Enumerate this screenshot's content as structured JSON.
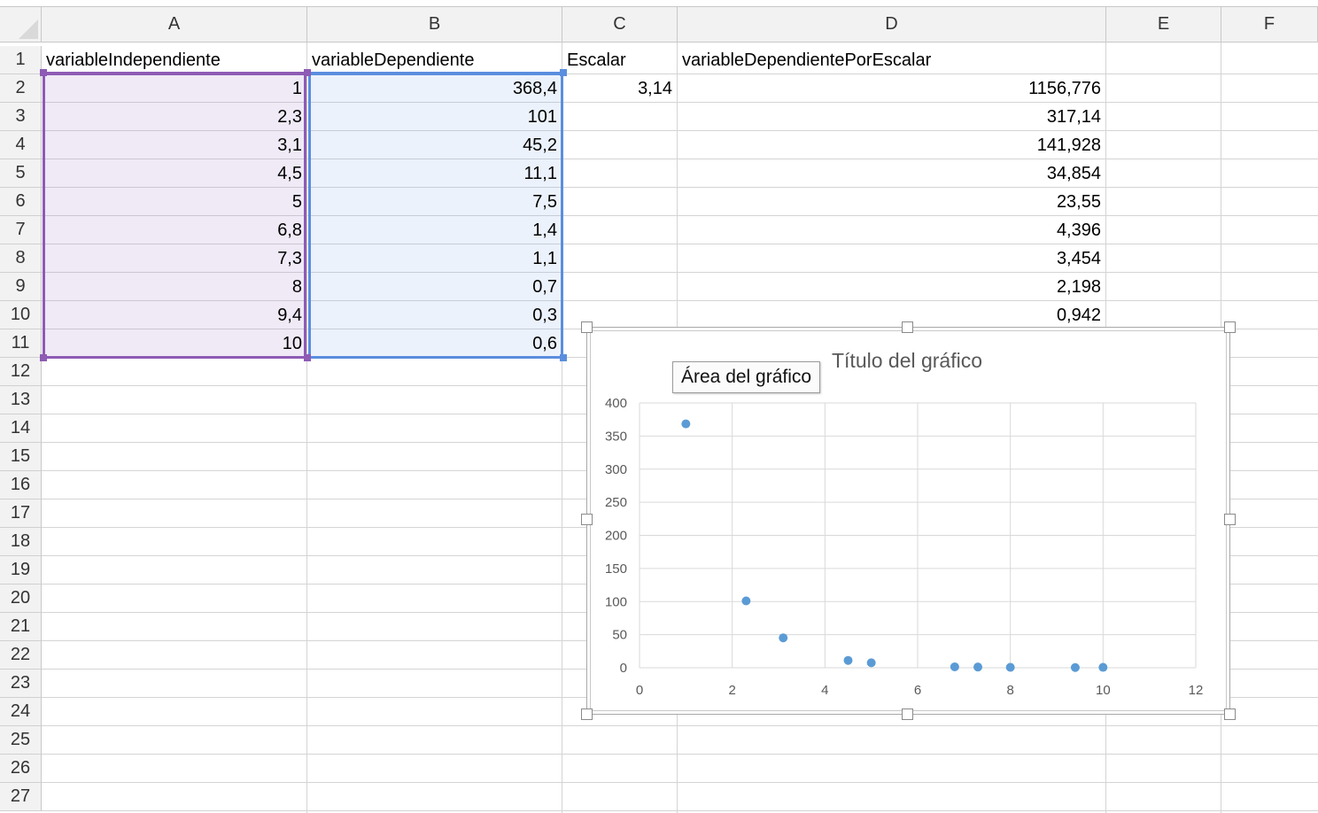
{
  "columns": [
    "A",
    "B",
    "C",
    "D",
    "E",
    "F"
  ],
  "rows": [
    "1",
    "2",
    "3",
    "4",
    "5",
    "6",
    "7",
    "8",
    "9",
    "10",
    "11",
    "12",
    "13",
    "14",
    "15",
    "16",
    "17",
    "18",
    "19",
    "20",
    "21",
    "22",
    "23",
    "24",
    "25",
    "26",
    "27"
  ],
  "headers": {
    "A": "variableIndependiente",
    "B": "variableDependiente",
    "C": "Escalar",
    "D": "variableDependientePorEscalar"
  },
  "colA": [
    "1",
    "2,3",
    "3,1",
    "4,5",
    "5",
    "6,8",
    "7,3",
    "8",
    "9,4",
    "10"
  ],
  "colB": [
    "368,4",
    "101",
    "45,2",
    "11,1",
    "7,5",
    "1,4",
    "1,1",
    "0,7",
    "0,3",
    "0,6"
  ],
  "colC": [
    "3,14"
  ],
  "colD": [
    "1156,776",
    "317,14",
    "141,928",
    "34,854",
    "23,55",
    "4,396",
    "3,454",
    "2,198",
    "0,942"
  ],
  "tooltip": "Área del gráfico",
  "colors": {
    "selectionA": "#8e5bb5",
    "selectionB": "#5b8ede",
    "marker": "#5b9bd5"
  },
  "chart_data": {
    "type": "scatter",
    "title": "Título del gráfico",
    "xlabel": "",
    "ylabel": "",
    "xlim": [
      0,
      12
    ],
    "ylim": [
      0,
      400
    ],
    "xticks": [
      "0",
      "2",
      "4",
      "6",
      "8",
      "10",
      "12"
    ],
    "yticks": [
      "0",
      "50",
      "100",
      "150",
      "200",
      "250",
      "300",
      "350",
      "400"
    ],
    "grid": true,
    "series": [
      {
        "x": [
          1,
          2.3,
          3.1,
          4.5,
          5,
          6.8,
          7.3,
          8,
          9.4,
          10
        ],
        "y": [
          368.4,
          101,
          45.2,
          11.1,
          7.5,
          1.4,
          1.1,
          0.7,
          0.3,
          0.6
        ]
      }
    ]
  }
}
